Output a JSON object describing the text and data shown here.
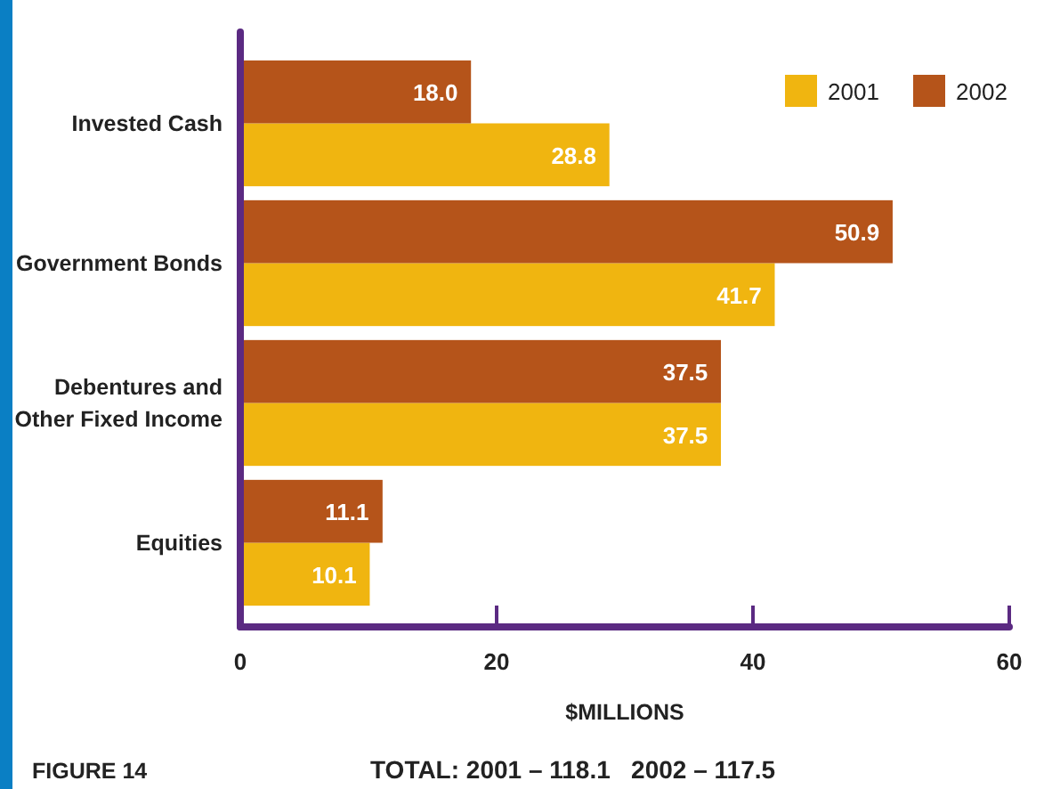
{
  "chart_data": {
    "type": "bar",
    "orientation": "horizontal",
    "categories": [
      "Invested Cash",
      "Government Bonds",
      "Debentures and Other Fixed Income",
      "Equities"
    ],
    "series": [
      {
        "name": "2001",
        "color": "#f0b510",
        "values": [
          28.8,
          41.7,
          37.5,
          10.1
        ],
        "value_labels": [
          "28.8",
          "41.7",
          "37.5",
          "10.1"
        ]
      },
      {
        "name": "2002",
        "color": "#b5541a",
        "values": [
          18.0,
          50.9,
          37.5,
          11.1
        ],
        "value_labels": [
          "18.0",
          "50.9",
          "37.5",
          "11.1"
        ]
      }
    ],
    "xlim": [
      0,
      60
    ],
    "xticks": [
      0,
      20,
      40,
      60
    ],
    "xlabel": "$MILLIONS",
    "legend": "top right",
    "grid": false,
    "annotations": [
      "FIGURE 14",
      "TOTAL: 2001 – 118.1   2002 – 117.5"
    ]
  }
}
